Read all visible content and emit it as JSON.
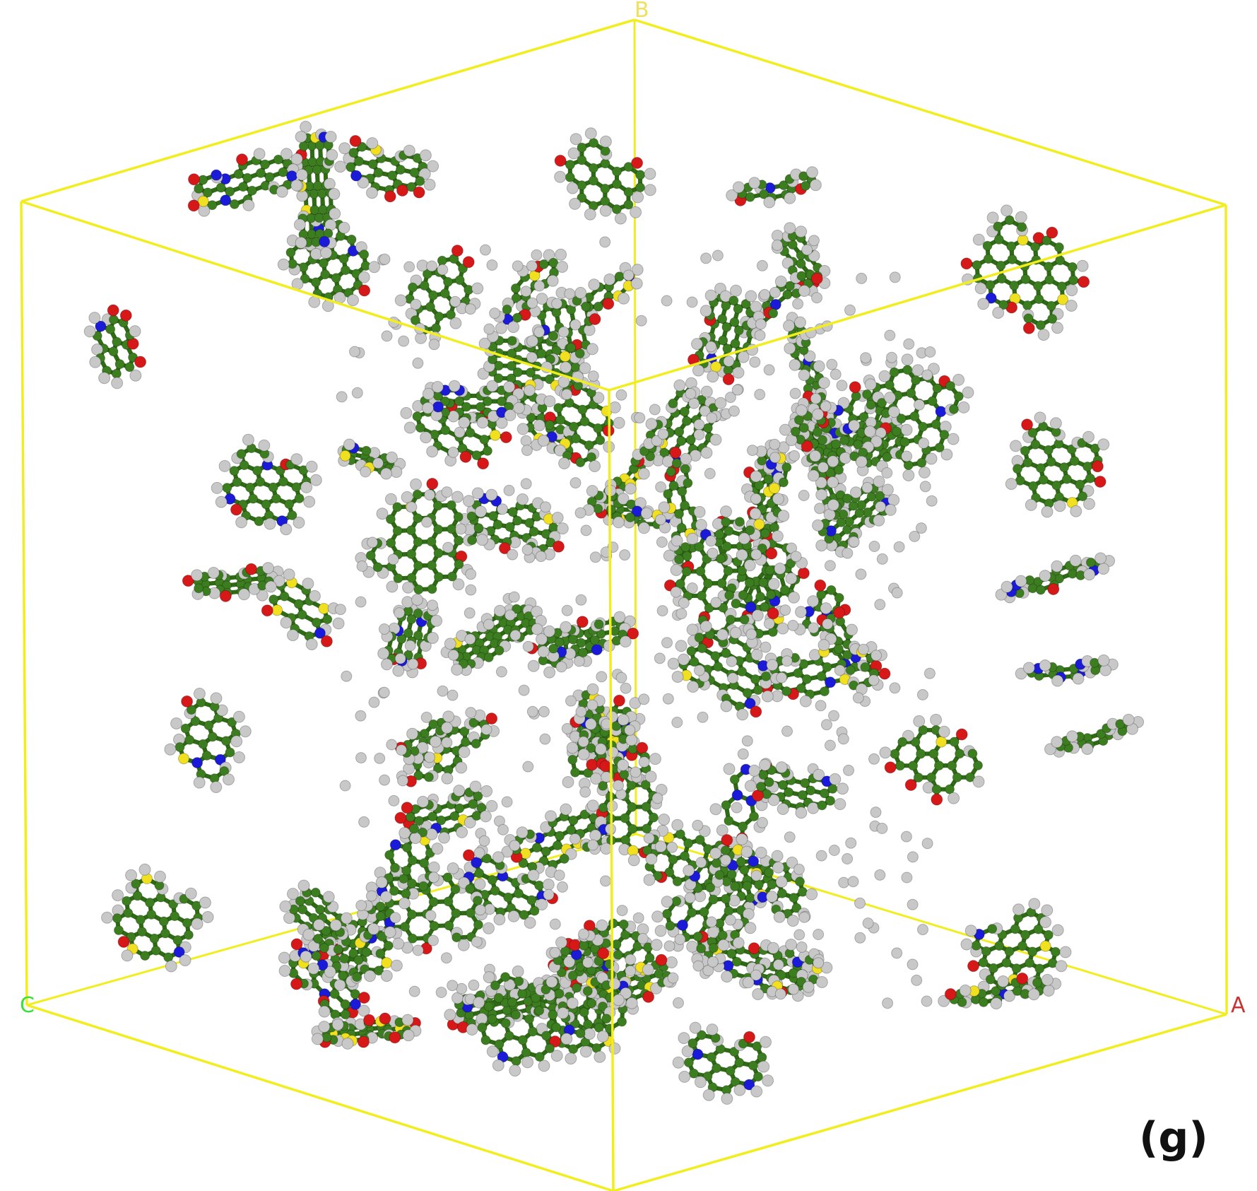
{
  "panel_label": "(g)",
  "axis_labels": {
    "a": "A",
    "b": "B",
    "c": "C"
  },
  "colors": {
    "cell_edge": "#f2ee1e",
    "bond": "#2f6b16",
    "carbon": "#3c7d1f",
    "hydrogen": "#c8c8c8",
    "oxygen": "#d61818",
    "nitrogen": "#1a1ad8",
    "sulfur": "#f0e020",
    "axis_a": "#c83232",
    "axis_b": "#f0e060",
    "axis_c": "#3ce03c"
  },
  "seed": 20240517
}
